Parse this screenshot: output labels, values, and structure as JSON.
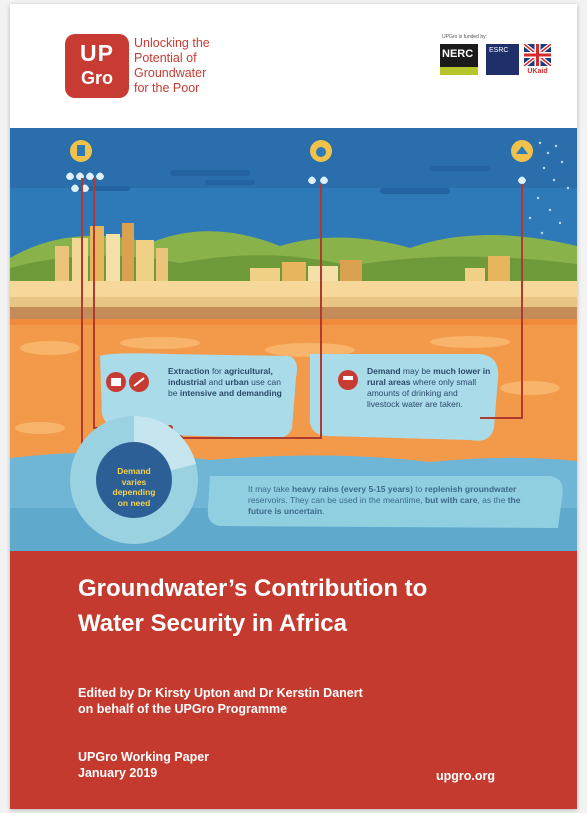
{
  "brand": {
    "logo_top": "UP",
    "logo_bottom": "Gro",
    "tagline": [
      "Unlocking the",
      "Potential of",
      "Groundwater",
      "for the Poor"
    ]
  },
  "funders": {
    "label": "UPGro is funded by:",
    "nerc": "NERC",
    "esrc": "ESRC",
    "ukaid": "UKaid"
  },
  "illustration": {
    "callout_extraction_parts": [
      "Extraction",
      " for ",
      "agricultural,",
      " ",
      "industrial",
      " and ",
      "urban",
      " use can be ",
      "intensive and demanding"
    ],
    "callout_rural_parts": [
      "Demand",
      " may be ",
      "much lower in rural areas",
      " where only small amounts of drinking and livestock water are taken."
    ],
    "callout_rain_parts": [
      "It may take ",
      "heavy rains (every 5-15 years)",
      " to ",
      "replenish groundwater",
      " reservoirs. They can be used in the meantime, ",
      "but with care",
      ", as the ",
      "the future is uncertain",
      "."
    ],
    "demand_lines": [
      "Demand",
      "varies",
      "depending",
      "on need"
    ]
  },
  "cover": {
    "title_lines": [
      "Groundwater’s Contribution to",
      "Water Security in Africa"
    ],
    "editors_lines": [
      "Edited by Dr Kirsty Upton and Dr Kerstin Danert",
      "on behalf of the UPGro Programme"
    ],
    "series_lines": [
      "UPGro Working Paper",
      "January 2019"
    ],
    "url": "upgro.org"
  },
  "colors": {
    "brand_red": "#c83b32",
    "footer_red": "#c43a2e",
    "sky": "#2e7ab8",
    "ground": "#f28a3c",
    "water": "#8fcfe0"
  }
}
